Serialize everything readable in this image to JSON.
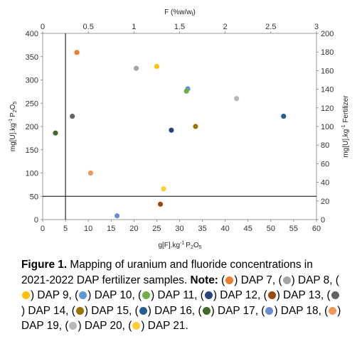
{
  "chart_data": {
    "type": "scatter",
    "title": "",
    "axes": {
      "x_bottom": {
        "label_main": "g[F].kg",
        "label_sup": "-1",
        "label_end": "P",
        "label_sub": "2",
        "label_tail": "O",
        "label_sub2": "5",
        "range": [
          0,
          60
        ],
        "ticks": [
          "0",
          "5",
          "10",
          "15",
          "20",
          "25",
          "30",
          "35",
          "40",
          "45",
          "50",
          "55",
          "60"
        ]
      },
      "x_top": {
        "label": "F (%w/w",
        "label_sub": "f",
        "label_close": ")",
        "range": [
          0,
          3
        ],
        "ticks": [
          "0",
          "0.5",
          "1",
          "1.5",
          "2",
          "2.5",
          "3"
        ]
      },
      "y_left": {
        "label_main": "mg[U].kg",
        "label_sup": "-1",
        "label_end": "P",
        "label_sub": "2",
        "label_tail": "O",
        "label_sub2": "5",
        "range": [
          0,
          400
        ],
        "ticks": [
          "0",
          "50",
          "100",
          "150",
          "200",
          "250",
          "300",
          "350",
          "400"
        ]
      },
      "y_right": {
        "label_main": "mg[U].kg",
        "label_sup": "-1",
        "label_end": " Fertilizer",
        "range": [
          0,
          200
        ],
        "ticks": [
          "0",
          "20",
          "40",
          "60",
          "80",
          "100",
          "120",
          "140",
          "160",
          "180",
          "200"
        ]
      }
    },
    "reference_lines": {
      "vertical_x": 5,
      "horizontal_y": 50
    },
    "grid": false,
    "series": [
      {
        "name": "DAP 7",
        "color": "#ed7d31",
        "x": 7.5,
        "y": 359
      },
      {
        "name": "DAP 8",
        "color": "#a5a5a5",
        "x": 20.5,
        "y": 325
      },
      {
        "name": "DAP 9",
        "color": "#ffc000",
        "x": 25,
        "y": 329
      },
      {
        "name": "DAP 10",
        "color": "#5b9bd5",
        "x": 31.8,
        "y": 281
      },
      {
        "name": "DAP 11",
        "color": "#70ad47",
        "x": 31.5,
        "y": 276
      },
      {
        "name": "DAP 12",
        "color": "#264478",
        "x": 28.2,
        "y": 192
      },
      {
        "name": "DAP 13",
        "color": "#9e480e",
        "x": 25.8,
        "y": 33
      },
      {
        "name": "DAP 14",
        "color": "#636363",
        "x": 6.5,
        "y": 222
      },
      {
        "name": "DAP 15",
        "color": "#997300",
        "x": 33.5,
        "y": 200
      },
      {
        "name": "DAP 16",
        "color": "#255e91",
        "x": 52.8,
        "y": 222
      },
      {
        "name": "DAP 17",
        "color": "#43682b",
        "x": 2.8,
        "y": 186
      },
      {
        "name": "DAP 18",
        "color": "#698ed0",
        "x": 16.3,
        "y": 8
      },
      {
        "name": "DAP 19",
        "color": "#f1975a",
        "x": 10.5,
        "y": 100
      },
      {
        "name": "DAP 20",
        "color": "#b7b7b7",
        "x": 42.5,
        "y": 260
      },
      {
        "name": "DAP 21",
        "color": "#ffcd33",
        "x": 26.5,
        "y": 66
      }
    ]
  },
  "caption": {
    "figure_label": "Figure 1.",
    "text": " Mapping of uranium and fluoride concentrations in 2021-2022 DAP fertilizer samples.",
    "note_label": "Note:",
    "legend_items": [
      {
        "label": "DAP 7",
        "color": "#ed7d31"
      },
      {
        "label": "DAP 8",
        "color": "#a5a5a5"
      },
      {
        "label": "DAP 9",
        "color": "#ffc000"
      },
      {
        "label": "DAP 10",
        "color": "#5b9bd5"
      },
      {
        "label": "DAP 11",
        "color": "#70ad47"
      },
      {
        "label": "DAP 12",
        "color": "#264478"
      },
      {
        "label": "DAP 13",
        "color": "#9e480e"
      },
      {
        "label": "DAP 14",
        "color": "#636363"
      },
      {
        "label": "DAP 15",
        "color": "#997300"
      },
      {
        "label": "DAP 16",
        "color": "#255e91"
      },
      {
        "label": "DAP 17",
        "color": "#43682b"
      },
      {
        "label": "DAP 18",
        "color": "#698ed0"
      },
      {
        "label": "DAP 19",
        "color": "#f1975a"
      },
      {
        "label": "DAP 20",
        "color": "#b7b7b7"
      },
      {
        "label": "DAP 21",
        "color": "#ffcd33"
      }
    ]
  }
}
